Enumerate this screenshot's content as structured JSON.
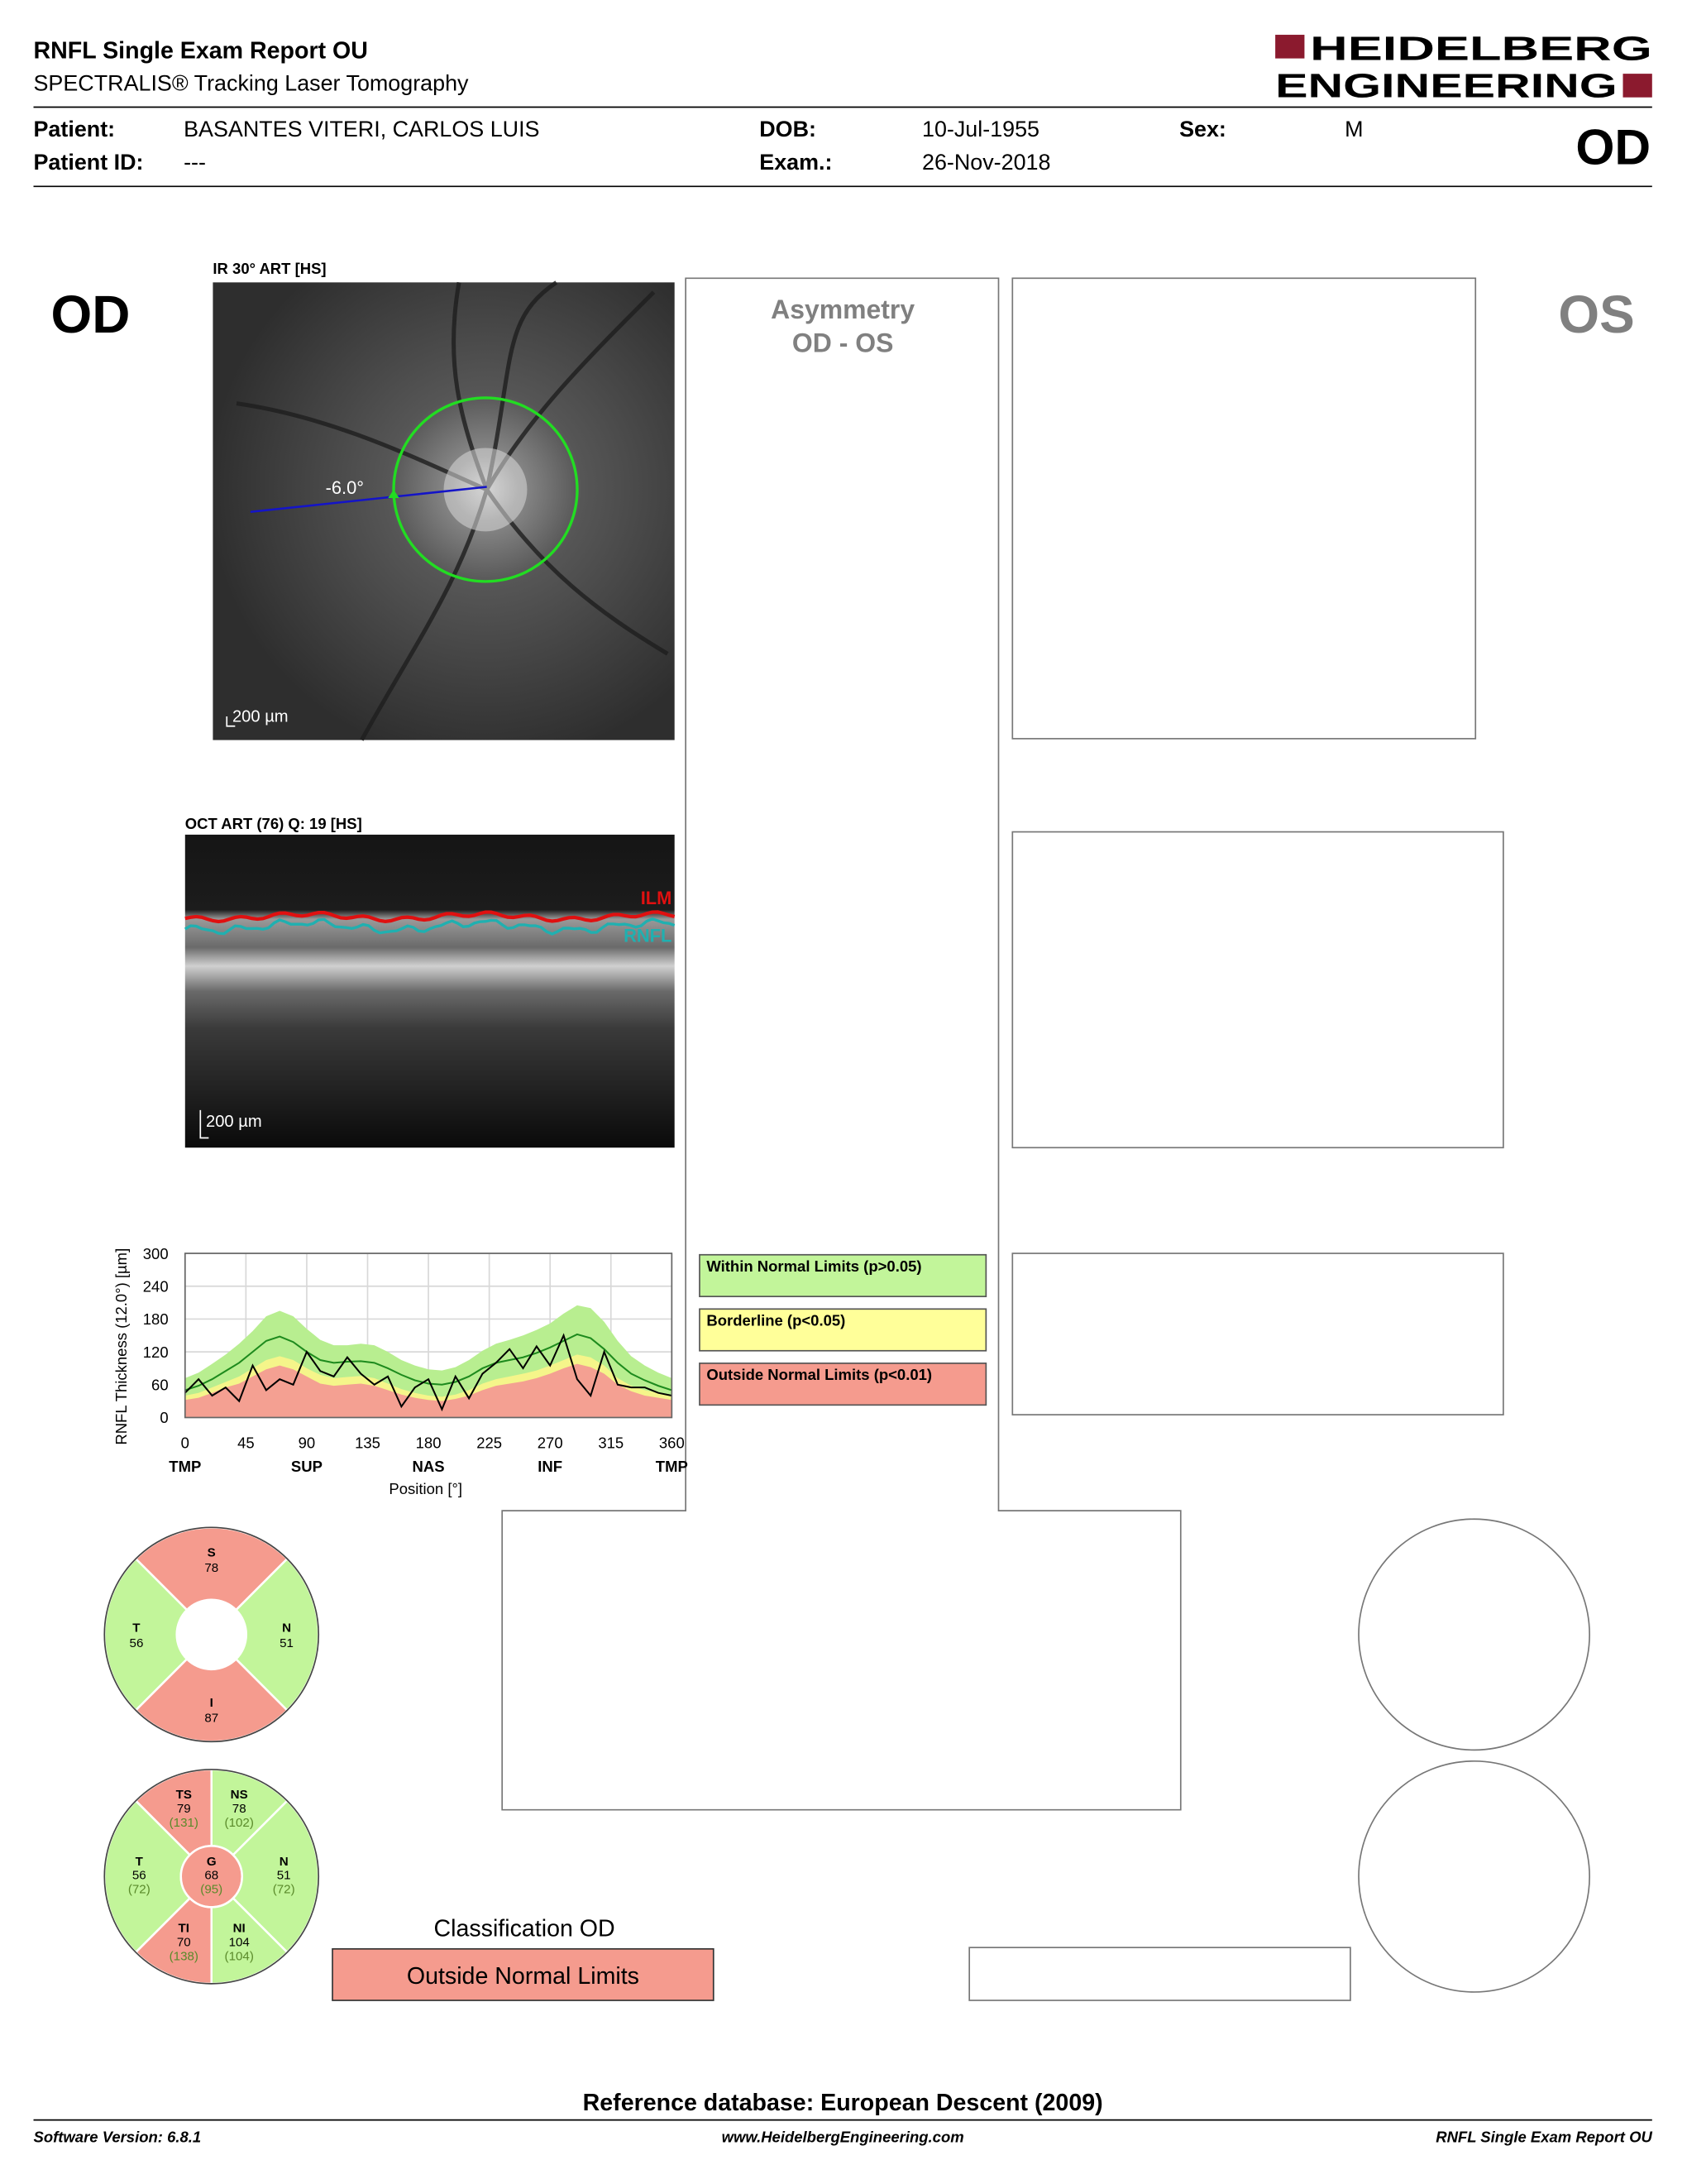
{
  "header": {
    "title": "RNFL Single Exam Report OU",
    "subtitle": "SPECTRALIS® Tracking Laser Tomography",
    "logo": [
      "HEIDELBERG",
      "ENGINEERING"
    ]
  },
  "patient": {
    "patient_label": "Patient:",
    "patient": "BASANTES VITERI, CARLOS LUIS",
    "id_label": "Patient ID:",
    "id": "---",
    "dob_label": "DOB:",
    "dob": "10-Jul-1955",
    "exam_label": "Exam.:",
    "exam": "26-Nov-2018",
    "sex_label": "Sex:",
    "sex": "M",
    "eye": "OD"
  },
  "panels": {
    "od": "OD",
    "os": "OS",
    "asymmetry": [
      "Asymmetry",
      "OD - OS"
    ],
    "ir_label": "IR 30° ART [HS]",
    "ir_angle": "-6.0°",
    "ir_scale": "200 µm",
    "oct_label": "OCT ART (76) Q: 19 [HS]",
    "ilm": "ILM",
    "rnfl": "RNFL",
    "oct_scale": "200 µm"
  },
  "chart_data": {
    "type": "line",
    "y_label": "RNFL Thickness (12.0°) [µm]",
    "x_label": "Position [°]",
    "x": [
      0,
      10,
      20,
      30,
      40,
      50,
      60,
      70,
      80,
      90,
      100,
      110,
      120,
      130,
      140,
      150,
      160,
      170,
      180,
      190,
      200,
      210,
      220,
      230,
      240,
      250,
      260,
      270,
      280,
      290,
      300,
      310,
      320,
      330,
      340,
      350,
      360
    ],
    "xlim": [
      0,
      360
    ],
    "ylim": [
      0,
      300
    ],
    "xticks": [
      0,
      45,
      90,
      135,
      180,
      225,
      270,
      315,
      360
    ],
    "yticks": [
      0,
      60,
      120,
      180,
      240,
      300
    ],
    "position_labels": [
      {
        "value": 0,
        "label": "TMP"
      },
      {
        "value": 90,
        "label": "SUP"
      },
      {
        "value": 180,
        "label": "NAS"
      },
      {
        "value": 270,
        "label": "INF"
      },
      {
        "value": 360,
        "label": "TMP"
      }
    ],
    "grid": true,
    "series": [
      {
        "color": "#b8ee90",
        "fill": true,
        "values": [
          72,
          82,
          98,
          115,
          135,
          158,
          185,
          195,
          185,
          162,
          142,
          132,
          132,
          135,
          132,
          120,
          105,
          95,
          88,
          86,
          92,
          105,
          122,
          135,
          142,
          150,
          160,
          172,
          190,
          205,
          200,
          175,
          140,
          112,
          95,
          82,
          72
        ]
      },
      {
        "color": "#f5f58a",
        "fill": true,
        "values": [
          40,
          45,
          55,
          65,
          75,
          90,
          105,
          112,
          105,
          90,
          78,
          72,
          74,
          76,
          72,
          62,
          52,
          45,
          40,
          38,
          42,
          50,
          62,
          70,
          75,
          80,
          86,
          95,
          105,
          115,
          110,
          95,
          72,
          58,
          50,
          45,
          40
        ]
      },
      {
        "color": "#f4a092",
        "fill": true,
        "values": [
          32,
          36,
          45,
          55,
          62,
          75,
          88,
          95,
          88,
          75,
          62,
          58,
          60,
          62,
          58,
          50,
          42,
          36,
          32,
          30,
          34,
          40,
          50,
          58,
          62,
          66,
          72,
          80,
          90,
          98,
          92,
          80,
          60,
          48,
          40,
          36,
          32
        ]
      },
      {
        "color": "#1d8a1d",
        "fill": false,
        "values": [
          50,
          58,
          70,
          85,
          100,
          120,
          140,
          148,
          138,
          120,
          105,
          100,
          102,
          103,
          100,
          90,
          78,
          68,
          62,
          60,
          65,
          75,
          90,
          100,
          105,
          110,
          118,
          128,
          140,
          152,
          145,
          125,
          100,
          80,
          68,
          58,
          50
        ]
      },
      {
        "color": "#000000",
        "fill": false,
        "values": [
          45,
          70,
          40,
          55,
          30,
          95,
          50,
          70,
          60,
          120,
          85,
          75,
          110,
          80,
          60,
          75,
          20,
          55,
          70,
          15,
          75,
          35,
          80,
          100,
          125,
          90,
          130,
          95,
          150,
          70,
          40,
          120,
          60,
          55,
          55,
          45,
          40
        ]
      }
    ]
  },
  "legend": [
    {
      "label": "Within Normal Limits (p>0.05)",
      "color": "#c2f59a"
    },
    {
      "label": "Borderline (p<0.05)",
      "color": "#ffff99"
    },
    {
      "label": "Outside Normal Limits (p<0.01)",
      "color": "#f59b8e"
    }
  ],
  "sectors4": [
    {
      "label": "S",
      "value": 78,
      "color": "#f59b8e"
    },
    {
      "label": "T",
      "value": 56,
      "color": "#c2f59a"
    },
    {
      "label": "I",
      "value": 87,
      "color": "#f59b8e"
    },
    {
      "label": "N",
      "value": 51,
      "color": "#c2f59a"
    }
  ],
  "sectors6": [
    {
      "label": "TS",
      "value": 79,
      "normal": "(131)",
      "color": "#f59b8e"
    },
    {
      "label": "NS",
      "value": 78,
      "normal": "(102)",
      "color": "#c2f59a"
    },
    {
      "label": "T",
      "value": 56,
      "normal": "(72)",
      "color": "#c2f59a"
    },
    {
      "label": "G",
      "value": 68,
      "normal": "(95)",
      "color": "#f59b8e"
    },
    {
      "label": "N",
      "value": 51,
      "normal": "(72)",
      "color": "#c2f59a"
    },
    {
      "label": "TI",
      "value": 70,
      "normal": "(138)",
      "color": "#f59b8e"
    },
    {
      "label": "NI",
      "value": 104,
      "normal": "(104)",
      "color": "#c2f59a"
    }
  ],
  "classification": {
    "title": "Classification OD",
    "result": "Outside Normal Limits",
    "color": "#f59b8e"
  },
  "footer": {
    "reference": "Reference database: European Descent (2009)",
    "version": "Software Version: 6.8.1",
    "url": "www.HeidelbergEngineering.com",
    "report": "RNFL Single Exam Report OU"
  }
}
